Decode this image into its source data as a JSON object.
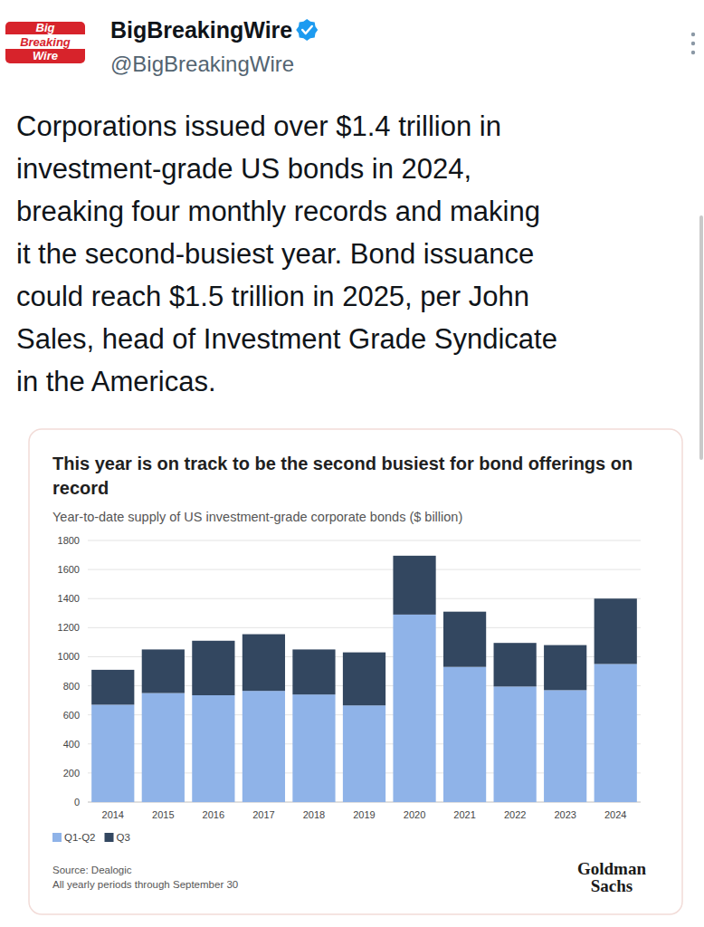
{
  "post": {
    "name": "BigBreakingWire",
    "handle": "@BigBreakingWire",
    "logo_text": [
      "Big",
      "Breaking",
      "Wire"
    ],
    "text_lines": [
      "Corporations issued over $1.4 trillion in",
      "investment-grade US bonds in 2024,",
      "breaking four monthly records and making",
      "it the second-busiest year. Bond issuance",
      "could reach $1.5 trillion in 2025, per John",
      "Sales, head of Investment Grade Syndicate",
      "in the Americas."
    ]
  },
  "chart_data": {
    "type": "bar",
    "stacked": true,
    "grid": true,
    "legend": "bottom-left",
    "title": "This year is on track to be the second busiest for bond offerings on record",
    "subtitle": "Year-to-date supply of US investment-grade corporate bonds ($ billion)",
    "categories": [
      "2014",
      "2015",
      "2016",
      "2017",
      "2018",
      "2019",
      "2020",
      "2021",
      "2022",
      "2023",
      "2024"
    ],
    "series": [
      {
        "name": "Q1-Q2",
        "color": "#8fb3e8",
        "values": [
          670,
          750,
          735,
          765,
          740,
          665,
          1290,
          930,
          795,
          770,
          950
        ]
      },
      {
        "name": "Q3",
        "color": "#334760",
        "values": [
          240,
          300,
          375,
          390,
          310,
          365,
          405,
          380,
          300,
          310,
          450
        ]
      }
    ],
    "ylim": [
      0,
      1800
    ],
    "yticks": [
      0,
      200,
      400,
      600,
      800,
      1000,
      1200,
      1400,
      1600,
      1800
    ],
    "source": "Source: Dealogic",
    "note": "All yearly periods through September 30",
    "brand": [
      "Goldman",
      "Sachs"
    ]
  }
}
